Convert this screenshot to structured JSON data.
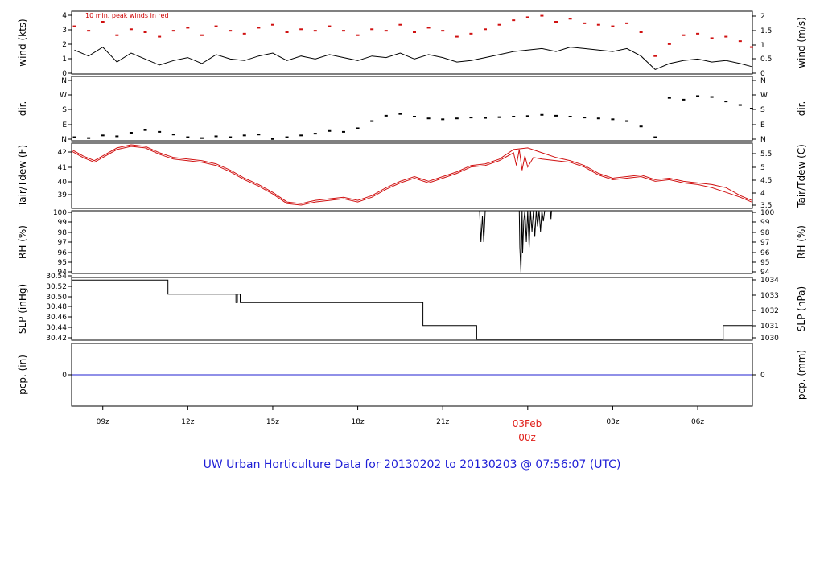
{
  "chart_data": {
    "type": "line",
    "title": "UW Urban Horticulture Data for 20130202  to  20130203 @ 07:56:07  (UTC)",
    "x_ticks": [
      "09z",
      "12z",
      "15z",
      "18z",
      "21z",
      "00z",
      "03z",
      "06z"
    ],
    "date_label": "03Feb",
    "date_sub": "00z",
    "x_range_hours": [
      7.9,
      31.93
    ],
    "colors": {
      "line": "#000000",
      "red": "#d01010",
      "blue": "#2020d0",
      "title": "#1f1fd6"
    },
    "panels": [
      {
        "key": "wind",
        "ylabel_left": "wind (kts)",
        "ylabel_right": "wind (m/s)",
        "ylim": [
          0,
          4.2
        ],
        "left_ticks": [
          "0",
          "1",
          "2",
          "3",
          "4"
        ],
        "right_ticks": [
          "0",
          "0.5",
          "1",
          "1.5",
          "2"
        ],
        "annotation": "10 min. peak winds in red",
        "series": [
          {
            "name": "wind speed",
            "x": [
              8.0,
              8.5,
              9.0,
              9.5,
              10.0,
              10.5,
              11.0,
              11.5,
              12.0,
              12.5,
              13.0,
              13.5,
              14.0,
              14.5,
              15.0,
              15.5,
              16.0,
              16.5,
              17.0,
              17.5,
              18.0,
              18.5,
              19.0,
              19.5,
              20.0,
              20.5,
              21.0,
              21.5,
              22.0,
              22.5,
              23.0,
              23.5,
              24.0,
              24.5,
              25.0,
              25.5,
              26.0,
              26.5,
              27.0,
              27.5,
              28.0,
              28.5,
              29.0,
              29.5,
              30.0,
              30.5,
              31.0,
              31.5,
              31.9
            ],
            "values": [
              1.6,
              1.2,
              1.8,
              0.8,
              1.4,
              1.0,
              0.6,
              0.9,
              1.1,
              0.7,
              1.3,
              1.0,
              0.9,
              1.2,
              1.4,
              0.9,
              1.2,
              1.0,
              1.3,
              1.1,
              0.9,
              1.2,
              1.1,
              1.4,
              1.0,
              1.3,
              1.1,
              0.8,
              0.9,
              1.1,
              1.3,
              1.5,
              1.6,
              1.7,
              1.5,
              1.8,
              1.7,
              1.6,
              1.5,
              1.7,
              1.2,
              0.3,
              0.7,
              0.9,
              1.0,
              0.8,
              0.9,
              0.7,
              0.5
            ]
          },
          {
            "name": "10 min. peak winds",
            "x": [
              8.0,
              8.5,
              9.0,
              9.5,
              10.0,
              10.5,
              11.0,
              11.5,
              12.0,
              12.5,
              13.0,
              13.5,
              14.0,
              14.5,
              15.0,
              15.5,
              16.0,
              16.5,
              17.0,
              17.5,
              18.0,
              18.5,
              19.0,
              19.5,
              20.0,
              20.5,
              21.0,
              21.5,
              22.0,
              22.5,
              23.0,
              23.5,
              24.0,
              24.5,
              25.0,
              25.5,
              26.0,
              26.5,
              27.0,
              27.5,
              28.0,
              28.5,
              29.0,
              29.5,
              30.0,
              30.5,
              31.0,
              31.5,
              31.9
            ],
            "values": [
              3.2,
              2.9,
              3.5,
              2.6,
              3.0,
              2.8,
              2.5,
              2.9,
              3.1,
              2.6,
              3.2,
              2.9,
              2.7,
              3.1,
              3.3,
              2.8,
              3.0,
              2.9,
              3.2,
              2.9,
              2.6,
              3.0,
              2.9,
              3.3,
              2.8,
              3.1,
              2.9,
              2.5,
              2.7,
              3.0,
              3.3,
              3.6,
              3.8,
              3.9,
              3.5,
              3.7,
              3.4,
              3.3,
              3.2,
              3.4,
              2.8,
              1.2,
              2.0,
              2.6,
              2.7,
              2.4,
              2.5,
              2.2,
              1.8
            ]
          }
        ]
      },
      {
        "key": "dir",
        "ylabel_left": "dir.",
        "ylabel_right": "dir.",
        "ylim": [
          0,
          360
        ],
        "left_ticks": [
          "N",
          "E",
          "S",
          "W",
          "N"
        ],
        "right_ticks": [
          "N",
          "E",
          "S",
          "W",
          "N"
        ],
        "series": [
          {
            "name": "wind direction",
            "x": [
              8.0,
              8.5,
              9.0,
              9.5,
              10.0,
              10.5,
              11.0,
              11.5,
              12.0,
              12.5,
              13.0,
              13.5,
              14.0,
              14.5,
              15.0,
              15.5,
              16.0,
              16.5,
              17.0,
              17.5,
              18.0,
              18.5,
              19.0,
              19.5,
              20.0,
              20.5,
              21.0,
              21.5,
              22.0,
              22.5,
              23.0,
              23.5,
              24.0,
              24.5,
              25.0,
              25.5,
              26.0,
              26.5,
              27.0,
              27.5,
              28.0,
              28.5,
              29.0,
              29.5,
              30.0,
              30.5,
              31.0,
              31.5,
              31.9
            ],
            "values": [
              20,
              15,
              30,
              25,
              45,
              60,
              50,
              35,
              20,
              15,
              25,
              20,
              30,
              35,
              10,
              20,
              30,
              40,
              55,
              50,
              70,
              110,
              140,
              150,
              135,
              125,
              120,
              125,
              130,
              128,
              132,
              135,
              138,
              145,
              140,
              135,
              130,
              125,
              120,
              110,
              80,
              20,
              240,
              230,
              250,
              245,
              220,
              200,
              180
            ]
          }
        ]
      },
      {
        "key": "temp",
        "ylabel_left": "Tair/Tdew (F)",
        "ylabel_right": "Tair/Tdew (C)",
        "ylim": [
          38.3,
          42.4
        ],
        "left_ticks": [
          "39",
          "40",
          "41",
          "42"
        ],
        "right_ticks": [
          "3.5",
          "4",
          "4.5",
          "5",
          "5.5"
        ],
        "series": [
          {
            "name": "Tair",
            "x": [
              7.9,
              8.3,
              8.7,
              9.0,
              9.5,
              10.0,
              10.5,
              11.0,
              11.5,
              12.0,
              12.5,
              13.0,
              13.5,
              14.0,
              14.5,
              15.0,
              15.5,
              16.0,
              16.5,
              17.0,
              17.5,
              18.0,
              18.5,
              19.0,
              19.5,
              20.0,
              20.5,
              21.0,
              21.5,
              22.0,
              22.5,
              23.0,
              23.5,
              24.0,
              24.5,
              25.0,
              25.5,
              26.0,
              26.5,
              27.0,
              27.5,
              28.0,
              28.5,
              29.0,
              29.5,
              30.0,
              30.5,
              31.0,
              31.5,
              31.9
            ],
            "values": [
              42.0,
              41.6,
              41.3,
              41.6,
              42.1,
              42.3,
              42.2,
              41.8,
              41.5,
              41.4,
              41.3,
              41.1,
              40.7,
              40.2,
              39.8,
              39.3,
              38.7,
              38.6,
              38.8,
              38.9,
              39.0,
              38.8,
              39.1,
              39.6,
              40.0,
              40.3,
              40.0,
              40.3,
              40.6,
              41.0,
              41.1,
              41.4,
              42.0,
              42.1,
              41.8,
              41.5,
              41.3,
              41.0,
              40.5,
              40.2,
              40.3,
              40.4,
              40.1,
              40.2,
              40.0,
              39.9,
              39.8,
              39.6,
              39.1,
              38.8
            ]
          },
          {
            "name": "Tdew",
            "x": [
              7.9,
              8.3,
              8.7,
              9.0,
              9.5,
              10.0,
              10.5,
              11.0,
              11.5,
              12.0,
              12.5,
              13.0,
              13.5,
              14.0,
              14.5,
              15.0,
              15.5,
              16.0,
              16.5,
              17.0,
              17.5,
              18.0,
              18.5,
              19.0,
              19.5,
              20.0,
              20.5,
              21.0,
              21.5,
              22.0,
              22.5,
              23.0,
              23.5,
              23.6,
              23.7,
              23.8,
              23.9,
              24.0,
              24.2,
              24.5,
              25.0,
              25.5,
              26.0,
              26.5,
              27.0,
              27.5,
              28.0,
              28.5,
              29.0,
              29.5,
              30.0,
              30.5,
              31.0,
              31.5,
              31.9
            ],
            "values": [
              41.9,
              41.5,
              41.2,
              41.5,
              42.0,
              42.2,
              42.1,
              41.7,
              41.4,
              41.3,
              41.2,
              41.0,
              40.6,
              40.1,
              39.7,
              39.2,
              38.6,
              38.5,
              38.7,
              38.8,
              38.9,
              38.7,
              39.0,
              39.5,
              39.9,
              40.2,
              39.9,
              40.2,
              40.5,
              40.9,
              41.0,
              41.3,
              41.8,
              41.0,
              42.0,
              40.7,
              41.6,
              40.9,
              41.5,
              41.4,
              41.3,
              41.2,
              40.9,
              40.4,
              40.1,
              40.2,
              40.3,
              40.0,
              40.1,
              39.9,
              39.8,
              39.6,
              39.3,
              39.0,
              38.7
            ]
          }
        ]
      },
      {
        "key": "rh",
        "ylabel_left": "RH (%)",
        "ylabel_right": "RH (%)",
        "ylim": [
          94,
          100
        ],
        "left_ticks": [
          "94",
          "95",
          "96",
          "97",
          "98",
          "99",
          "100"
        ],
        "right_ticks": [
          "94",
          "95",
          "96",
          "97",
          "98",
          "99",
          "100"
        ],
        "series": [
          {
            "name": "RH",
            "x": [
              22.0,
              22.3,
              22.35,
              22.4,
              22.45,
              22.5,
              22.55,
              23.7,
              23.72,
              23.76,
              23.8,
              23.82,
              23.86,
              23.9,
              23.95,
              24.0,
              24.05,
              24.1,
              24.15,
              24.2,
              24.25,
              24.3,
              24.35,
              24.4,
              24.45,
              24.5,
              24.55,
              24.6,
              24.7,
              24.8,
              24.82,
              24.84,
              24.9
            ],
            "values": [
              100,
              100,
              97.0,
              99.5,
              97.0,
              100,
              100,
              100,
              96.5,
              94.1,
              100,
              96.0,
              99.0,
              100,
              97.0,
              100,
              96.5,
              100,
              98.0,
              100,
              97.5,
              100,
              98.5,
              100,
              98.0,
              100,
              99.0,
              100,
              100,
              100,
              99.2,
              100,
              100
            ]
          }
        ]
      },
      {
        "key": "slp",
        "ylabel_left": "SLP (inHg)",
        "ylabel_right": "SLP (hPa)",
        "ylim": [
          30.42,
          30.54
        ],
        "left_ticks": [
          "30.42",
          "30.44",
          "30.46",
          "30.48",
          "30.50",
          "30.52",
          "30.54"
        ],
        "right_ticks": [
          "1030",
          "1031",
          "1032",
          "1033",
          "1034"
        ],
        "series": [
          {
            "name": "SLP",
            "x": [
              7.9,
              11.3,
              11.3,
              13.7,
              13.7,
              13.75,
              13.75,
              13.85,
              13.85,
              13.9,
              13.9,
              20.3,
              20.3,
              22.2,
              22.2,
              30.9,
              30.9,
              31.93
            ],
            "values": [
              30.535,
              30.535,
              30.508,
              30.508,
              30.492,
              30.492,
              30.508,
              30.508,
              30.492,
              30.492,
              30.492,
              30.492,
              30.448,
              30.448,
              30.422,
              30.422,
              30.448,
              30.448
            ]
          }
        ]
      },
      {
        "key": "pcp",
        "ylabel_left": "pcp. (in)",
        "ylabel_right": "pcp. (mm)",
        "ylim": [
          -0.02,
          0.02
        ],
        "left_ticks": [
          "0"
        ],
        "right_ticks": [
          "0"
        ],
        "series": [
          {
            "name": "precipitation",
            "x": [
              7.9,
              31.93
            ],
            "values": [
              0,
              0
            ]
          }
        ]
      }
    ]
  }
}
